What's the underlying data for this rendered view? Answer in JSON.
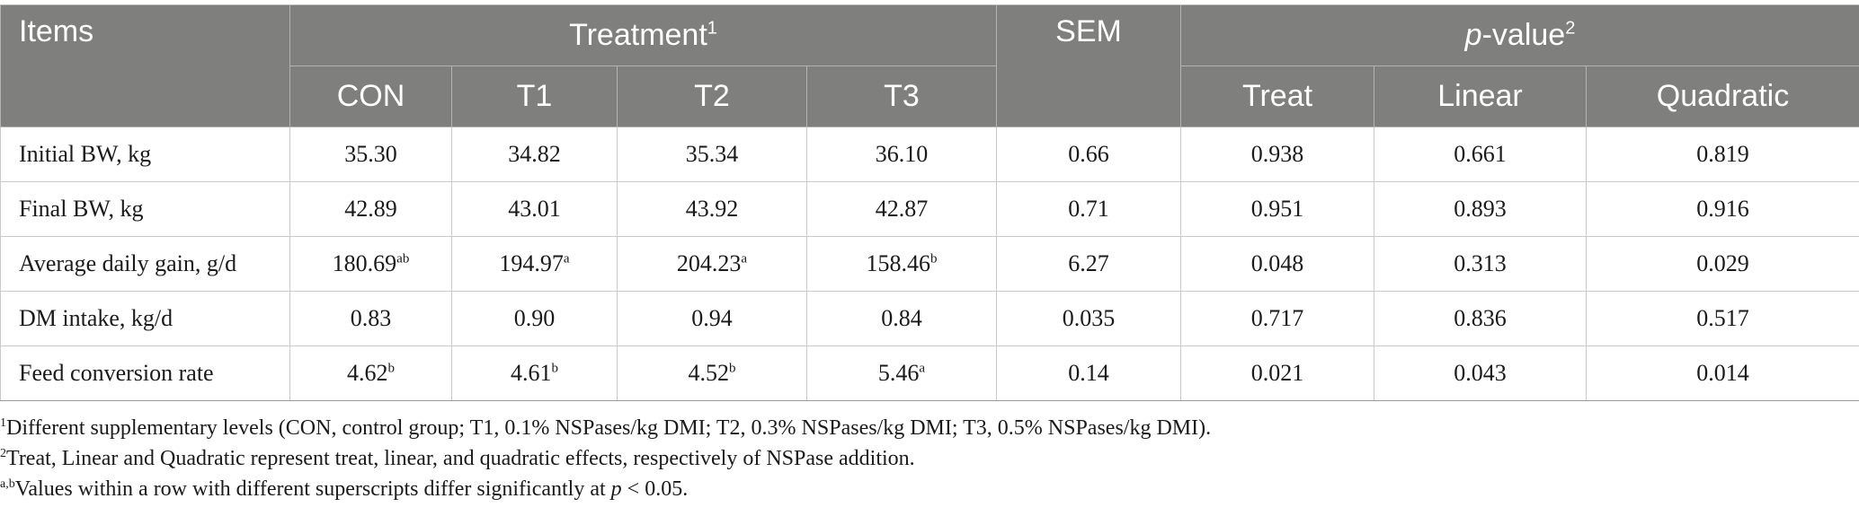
{
  "table": {
    "header": {
      "items": "Items",
      "treatment": "Treatment",
      "treatment_sup": "1",
      "sem": "SEM",
      "pvalue_italic": "p",
      "pvalue_rest": "-value",
      "pvalue_sup": "2",
      "columns": [
        "CON",
        "T1",
        "T2",
        "T3",
        "Treat",
        "Linear",
        "Quadratic"
      ]
    },
    "rows": [
      {
        "label": "Initial BW, kg",
        "con": "35.30",
        "con_sup": "",
        "t1": "34.82",
        "t1_sup": "",
        "t2": "35.34",
        "t2_sup": "",
        "t3": "36.10",
        "t3_sup": "",
        "sem": "0.66",
        "treat": "0.938",
        "linear": "0.661",
        "quadratic": "0.819"
      },
      {
        "label": "Final BW, kg",
        "con": "42.89",
        "con_sup": "",
        "t1": "43.01",
        "t1_sup": "",
        "t2": "43.92",
        "t2_sup": "",
        "t3": "42.87",
        "t3_sup": "",
        "sem": "0.71",
        "treat": "0.951",
        "linear": "0.893",
        "quadratic": "0.916"
      },
      {
        "label": "Average daily gain, g/d",
        "con": "180.69",
        "con_sup": "ab",
        "t1": "194.97",
        "t1_sup": "a",
        "t2": "204.23",
        "t2_sup": "a",
        "t3": "158.46",
        "t3_sup": "b",
        "sem": "6.27",
        "treat": "0.048",
        "linear": "0.313",
        "quadratic": "0.029"
      },
      {
        "label": "DM intake, kg/d",
        "con": "0.83",
        "con_sup": "",
        "t1": "0.90",
        "t1_sup": "",
        "t2": "0.94",
        "t2_sup": "",
        "t3": "0.84",
        "t3_sup": "",
        "sem": "0.035",
        "treat": "0.717",
        "linear": "0.836",
        "quadratic": "0.517"
      },
      {
        "label": "Feed conversion rate",
        "con": "4.62",
        "con_sup": "b",
        "t1": "4.61",
        "t1_sup": "b",
        "t2": "4.52",
        "t2_sup": "b",
        "t3": "5.46",
        "t3_sup": "a",
        "sem": "0.14",
        "treat": "0.021",
        "linear": "0.043",
        "quadratic": "0.014"
      }
    ]
  },
  "footnotes": {
    "note1_sup": "1",
    "note1": "Different supplementary levels (CON, control group; T1, 0.1% NSPases/kg DMI; T2, 0.3% NSPases/kg DMI; T3, 0.5% NSPases/kg DMI).",
    "note2_sup": "2",
    "note2": "Treat, Linear and Quadratic represent treat, linear, and quadratic effects, respectively of NSPase addition.",
    "note3_sup": "a,b",
    "note3_pre": "Values within a row with different superscripts differ significantly at ",
    "note3_italic": "p",
    "note3_post": " < 0.05."
  }
}
